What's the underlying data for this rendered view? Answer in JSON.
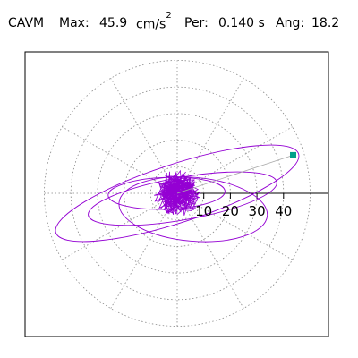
{
  "header": {
    "metric_label": "CAVM",
    "max_label": "Max:",
    "max_value": "45.9",
    "max_unit": "cm/s",
    "max_unit_exp": "2",
    "per_label": "Per:",
    "per_value": "0.140 s",
    "ang_label": "Ang:",
    "ang_value": "18.2"
  },
  "chart_data": {
    "type": "polar-orbit",
    "title": "",
    "radial_ticks": [
      10,
      20,
      30,
      40
    ],
    "radial_range": [
      0,
      50
    ],
    "angular_grid_deg": 30,
    "grid": true,
    "max_magnitude": 45.9,
    "max_angle_deg": 18.2,
    "trace_color": "#9400d3",
    "marker_color": "#00a08a",
    "grid_color": "#888888"
  }
}
